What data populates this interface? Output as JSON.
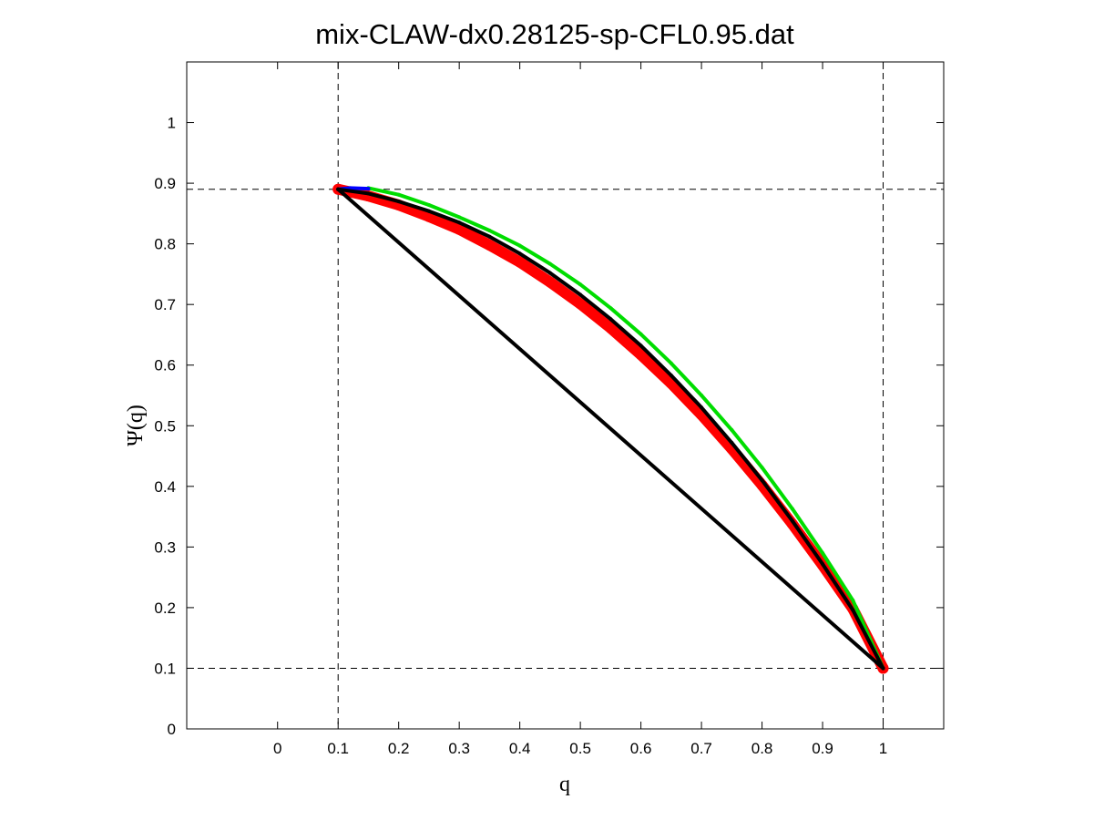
{
  "chart_data": {
    "type": "line",
    "title": "mix-CLAW-dx0.28125-sp-CFL0.95.dat",
    "xlabel": "q",
    "ylabel": "Ψ(q)",
    "xlim": [
      -0.15,
      1.1
    ],
    "ylim": [
      0,
      1.1
    ],
    "x_ticks": [
      0,
      0.1,
      0.2,
      0.3,
      0.4,
      0.5,
      0.6,
      0.7,
      0.8,
      0.9,
      1
    ],
    "y_ticks": [
      0,
      0.1,
      0.2,
      0.3,
      0.4,
      0.5,
      0.6,
      0.7,
      0.8,
      0.9,
      1
    ],
    "grid": false,
    "reference_lines": {
      "vertical": [
        0.1,
        1
      ],
      "horizontal": [
        0.1,
        0.89
      ]
    },
    "series": [
      {
        "color": "#ff0000",
        "x": [
          0.1,
          0.15,
          0.2,
          0.25,
          0.3,
          0.35,
          0.4,
          0.45,
          0.5,
          0.55,
          0.6,
          0.65,
          0.7,
          0.75,
          0.8,
          0.85,
          0.9,
          0.95,
          1
        ],
        "y": [
          0.89,
          0.879,
          0.864,
          0.845,
          0.824,
          0.798,
          0.77,
          0.737,
          0.701,
          0.661,
          0.617,
          0.57,
          0.518,
          0.462,
          0.402,
          0.338,
          0.27,
          0.198,
          0.1
        ],
        "band": 0.018
      },
      {
        "color": "#00dd00",
        "x": [
          0.15,
          0.2,
          0.25,
          0.3,
          0.35,
          0.4,
          0.45,
          0.5,
          0.55,
          0.6,
          0.65,
          0.7,
          0.75,
          0.8,
          0.85,
          0.9,
          0.95,
          1
        ],
        "y": [
          0.892,
          0.881,
          0.864,
          0.844,
          0.822,
          0.797,
          0.767,
          0.733,
          0.694,
          0.651,
          0.603,
          0.55,
          0.493,
          0.431,
          0.363,
          0.29,
          0.212,
          0.1
        ],
        "band": 0.006
      },
      {
        "color": "#0000ff",
        "x": [
          0.1,
          0.12,
          0.15
        ],
        "y": [
          0.89,
          0.892,
          0.891
        ],
        "band": 0.004
      },
      {
        "color": "#000000",
        "x": [
          0.1,
          0.15,
          0.2,
          0.25,
          0.3,
          0.35,
          0.4,
          0.45,
          0.5,
          0.55,
          0.6,
          0.65,
          0.7,
          0.75,
          0.8,
          0.85,
          0.9,
          0.95,
          1
        ],
        "y": [
          0.89,
          0.883,
          0.87,
          0.854,
          0.835,
          0.812,
          0.784,
          0.752,
          0.716,
          0.676,
          0.632,
          0.583,
          0.53,
          0.472,
          0.41,
          0.343,
          0.272,
          0.196,
          0.1
        ],
        "band": 0.004
      },
      {
        "color": "#000000",
        "x": [
          0.1,
          1
        ],
        "y": [
          0.89,
          0.1
        ],
        "band": 0.004
      }
    ]
  }
}
